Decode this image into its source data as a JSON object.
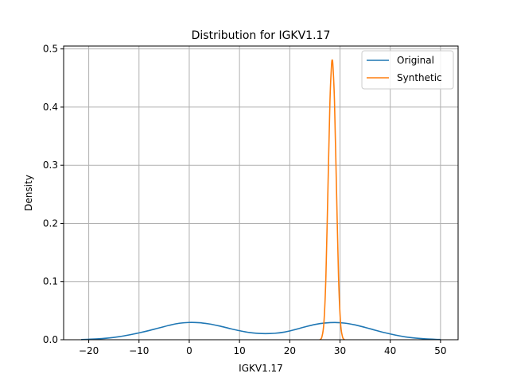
{
  "chart_data": {
    "type": "line",
    "title": "Distribution for IGKV1.17",
    "xlabel": "IGKV1.17",
    "ylabel": "Density",
    "xlim": [
      -25,
      53.5
    ],
    "ylim": [
      0,
      0.505
    ],
    "xticks": [
      -20,
      -10,
      0,
      10,
      20,
      30,
      40,
      50
    ],
    "yticks": [
      0.0,
      0.1,
      0.2,
      0.3,
      0.4,
      0.5
    ],
    "grid": true,
    "legend_position": "top-right",
    "series": [
      {
        "name": "Original",
        "color": "#1f77b4",
        "points": [
          [
            -21.5,
            0.0003
          ],
          [
            -20,
            0.0008
          ],
          [
            -18,
            0.0016
          ],
          [
            -16,
            0.003
          ],
          [
            -14,
            0.0052
          ],
          [
            -12,
            0.0082
          ],
          [
            -10,
            0.0118
          ],
          [
            -8,
            0.0158
          ],
          [
            -6,
            0.0203
          ],
          [
            -4,
            0.0247
          ],
          [
            -2,
            0.0283
          ],
          [
            0,
            0.0297
          ],
          [
            2,
            0.0292
          ],
          [
            4,
            0.0271
          ],
          [
            6,
            0.0236
          ],
          [
            8,
            0.0194
          ],
          [
            10,
            0.0155
          ],
          [
            12,
            0.0124
          ],
          [
            14.5,
            0.0106
          ],
          [
            17,
            0.0111
          ],
          [
            19,
            0.0132
          ],
          [
            21,
            0.0173
          ],
          [
            23,
            0.022
          ],
          [
            25,
            0.0262
          ],
          [
            27,
            0.0287
          ],
          [
            29,
            0.0296
          ],
          [
            31,
            0.0285
          ],
          [
            33,
            0.0255
          ],
          [
            35,
            0.0212
          ],
          [
            37,
            0.0164
          ],
          [
            39,
            0.0119
          ],
          [
            41,
            0.008
          ],
          [
            43,
            0.0049
          ],
          [
            45,
            0.0028
          ],
          [
            47,
            0.0014
          ],
          [
            49,
            0.0006
          ],
          [
            50,
            0.0004
          ]
        ]
      },
      {
        "name": "Synthetic",
        "color": "#ff7f0e",
        "points": [
          [
            26.0,
            0.0
          ],
          [
            26.4,
            0.005
          ],
          [
            26.8,
            0.03
          ],
          [
            27.2,
            0.11
          ],
          [
            27.6,
            0.26
          ],
          [
            28.0,
            0.41
          ],
          [
            28.3,
            0.47
          ],
          [
            28.45,
            0.481
          ],
          [
            28.6,
            0.47
          ],
          [
            28.9,
            0.41
          ],
          [
            29.3,
            0.26
          ],
          [
            29.7,
            0.11
          ],
          [
            30.1,
            0.03
          ],
          [
            30.5,
            0.005
          ],
          [
            30.9,
            0.0
          ]
        ]
      }
    ]
  }
}
